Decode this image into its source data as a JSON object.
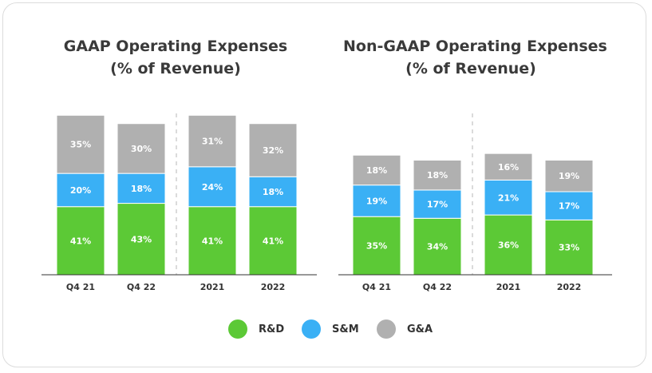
{
  "colors": {
    "rd": "#5cc936",
    "sm": "#3ab0f5",
    "ga": "#b0b0b0",
    "axis": "#333333",
    "divider": "#cfcfcf"
  },
  "legend": [
    {
      "key": "rd",
      "label": "R&D"
    },
    {
      "key": "sm",
      "label": "S&M"
    },
    {
      "key": "ga",
      "label": "G&A"
    }
  ],
  "chart_data": [
    {
      "type": "bar",
      "stacked": true,
      "title": "GAAP Operating Expenses",
      "subtitle": "(% of Revenue)",
      "categories": [
        "Q4 21",
        "Q4 22",
        "2021",
        "2022"
      ],
      "series": [
        {
          "name": "R&D",
          "key": "rd",
          "values": [
            41,
            43,
            41,
            41
          ],
          "labels": [
            "41%",
            "43%",
            "41%",
            "41%"
          ]
        },
        {
          "name": "S&M",
          "key": "sm",
          "values": [
            20,
            18,
            24,
            18
          ],
          "labels": [
            "20%",
            "18%",
            "24%",
            "18%"
          ]
        },
        {
          "name": "G&A",
          "key": "ga",
          "values": [
            35,
            30,
            31,
            32
          ],
          "labels": [
            "35%",
            "30%",
            "31%",
            "32%"
          ]
        }
      ],
      "divider_after_index": 1,
      "ylim": [
        0,
        100
      ],
      "grid": false
    },
    {
      "type": "bar",
      "stacked": true,
      "title": "Non-GAAP Operating Expenses",
      "subtitle": "(% of Revenue)",
      "categories": [
        "Q4 21",
        "Q4 22",
        "2021",
        "2022"
      ],
      "series": [
        {
          "name": "R&D",
          "key": "rd",
          "values": [
            35,
            34,
            36,
            33
          ],
          "labels": [
            "35%",
            "34%",
            "36%",
            "33%"
          ]
        },
        {
          "name": "S&M",
          "key": "sm",
          "values": [
            19,
            17,
            21,
            17
          ],
          "labels": [
            "19%",
            "17%",
            "21%",
            "17%"
          ]
        },
        {
          "name": "G&A",
          "key": "ga",
          "values": [
            18,
            18,
            16,
            19
          ],
          "labels": [
            "18%",
            "18%",
            "16%",
            "19%"
          ]
        }
      ],
      "divider_after_index": 1,
      "ylim": [
        0,
        100
      ],
      "grid": false
    }
  ]
}
